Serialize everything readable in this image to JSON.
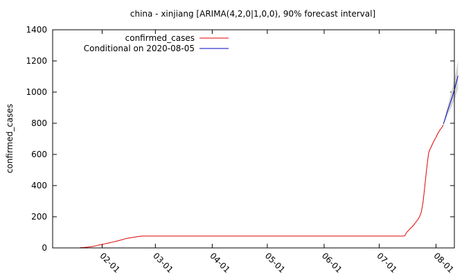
{
  "chart_data": {
    "type": "line",
    "title": "china - xinjiang [ARIMA(4,2,0|1,0,0), 90% forecast interval]",
    "xlabel": "",
    "ylabel": "confirmed_cases",
    "ylim": [
      0,
      1400
    ],
    "y_ticks": [
      0,
      200,
      400,
      600,
      800,
      1000,
      1200,
      1400
    ],
    "x_ticks": [
      {
        "day": 12,
        "label": "02-01"
      },
      {
        "day": 41,
        "label": "03-01"
      },
      {
        "day": 72,
        "label": "04-01"
      },
      {
        "day": 102,
        "label": "05-01"
      },
      {
        "day": 133,
        "label": "06-01"
      },
      {
        "day": 163,
        "label": "07-01"
      },
      {
        "day": 194,
        "label": "08-01"
      }
    ],
    "xlim": [
      -15,
      204
    ],
    "x_unit": "days since 2020-01-20",
    "legend": {
      "position": "top-left",
      "entries": [
        {
          "label": "confirmed_cases",
          "color": "#e00000"
        },
        {
          "label": "Conditional on 2020-08-05",
          "color": "#0000c0"
        }
      ]
    },
    "series": [
      {
        "name": "confirmed_cases",
        "color": "#e00000",
        "x": [
          0,
          2,
          4,
          6,
          8,
          10,
          12,
          14,
          16,
          18,
          20,
          22,
          24,
          26,
          28,
          30,
          32,
          34,
          37,
          40,
          60,
          100,
          140,
          160,
          170,
          171,
          172,
          173,
          174,
          175,
          176,
          177,
          178,
          179,
          180,
          181,
          182,
          183,
          184,
          185,
          186,
          187,
          188,
          189,
          190,
          191,
          192,
          193,
          194,
          195,
          196,
          197,
          198
        ],
        "y": [
          2,
          3,
          5,
          8,
          12,
          18,
          22,
          28,
          33,
          38,
          44,
          50,
          57,
          62,
          66,
          70,
          74,
          76,
          76,
          76,
          76,
          76,
          76,
          76,
          76,
          76,
          76,
          76,
          76,
          76,
          76,
          78,
          100,
          112,
          125,
          136,
          150,
          165,
          180,
          200,
          230,
          300,
          410,
          520,
          612,
          640,
          665,
          690,
          710,
          735,
          755,
          770,
          790
        ]
      },
      {
        "name": "Conditional on 2020-08-05",
        "color": "#0000c0",
        "x": [
          198,
          199,
          200,
          201,
          202,
          203,
          204,
          205,
          206
        ],
        "y": [
          795,
          830,
          870,
          905,
          940,
          975,
          1015,
          1060,
          1105
        ]
      }
    ],
    "forecast_interval": {
      "label": "90% forecast interval",
      "color": "#d3d3d3",
      "x": [
        198,
        199,
        200,
        201,
        202,
        203,
        204,
        205,
        206
      ],
      "lower": [
        795,
        818,
        845,
        870,
        895,
        920,
        950,
        985,
        1020
      ],
      "upper": [
        795,
        845,
        895,
        940,
        985,
        1030,
        1080,
        1140,
        1200
      ]
    }
  }
}
